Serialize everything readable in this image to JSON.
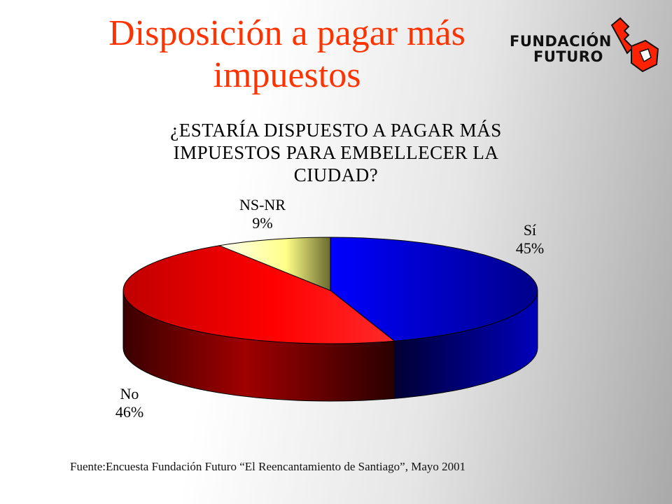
{
  "slide": {
    "title_line1": "Disposición a pagar más",
    "title_line2": "impuestos",
    "source": "Fuente:Encuesta Fundación Futuro  “El Reencantamiento de Santiago”, Mayo 2001"
  },
  "logo": {
    "line1": "FUNDACIÓN",
    "line2": "FUTURO",
    "icon": "key-icon",
    "color": "#ff2200"
  },
  "chart_data": {
    "type": "pie",
    "style": "3d",
    "title": "¿ESTARÍA DISPUESTO A PAGAR MÁS IMPUESTOS PARA EMBELLECER LA CIUDAD?",
    "title_lines": [
      "¿ESTARÍA DISPUESTO A PAGAR MÁS",
      "IMPUESTOS PARA EMBELLECER LA",
      "CIUDAD?"
    ],
    "slices": [
      {
        "label": "Sí",
        "value": 45,
        "value_label": "45%",
        "color": "#0000ff"
      },
      {
        "label": "No",
        "value": 46,
        "value_label": "46%",
        "color": "#ff0000"
      },
      {
        "label": "NS-NR",
        "value": 9,
        "value_label": "9%",
        "color": "#ffff99"
      }
    ]
  }
}
